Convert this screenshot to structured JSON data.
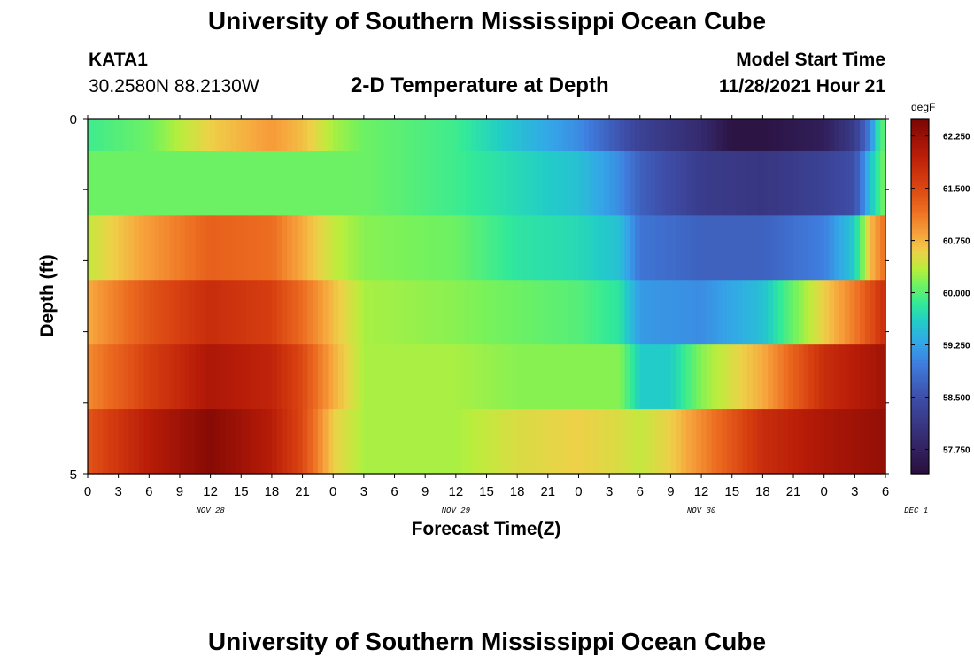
{
  "header": {
    "title": "University of Southern Mississippi Ocean Cube",
    "station_id": "KATA1",
    "station_coords": "30.2580N  88.2130W",
    "subtitle": "2-D Temperature at Depth",
    "model_start_label": "Model Start Time",
    "model_start_value": "11/28/2021 Hour 21"
  },
  "footer": {
    "title": "University of Southern Mississippi Ocean Cube"
  },
  "chart_data": {
    "type": "heatmap",
    "title": "2-D Temperature at Depth",
    "xlabel": "Forecast Time(Z)",
    "ylabel": "Depth (ft)",
    "colorbar_unit": "degF",
    "x_range_hours": [
      0,
      78
    ],
    "y_range": [
      0,
      5
    ],
    "y_tick_labels": [
      "0",
      "5"
    ],
    "x_tick_labels": [
      "0",
      "3",
      "6",
      "9",
      "12",
      "15",
      "18",
      "21",
      "0",
      "3",
      "6",
      "9",
      "12",
      "15",
      "18",
      "21",
      "0",
      "3",
      "6",
      "9",
      "12",
      "15",
      "18",
      "21",
      "0",
      "3",
      "6"
    ],
    "day_labels": [
      {
        "label": "NOV 28",
        "hour": 12
      },
      {
        "label": "NOV 29",
        "hour": 36
      },
      {
        "label": "NOV 30",
        "hour": 60
      },
      {
        "label": "DEC 1",
        "hour": 81
      }
    ],
    "color_scale": {
      "min": 57.4,
      "max": 62.5,
      "ticks": [
        "62.250",
        "61.500",
        "60.750",
        "60.000",
        "59.250",
        "58.500",
        "57.750"
      ],
      "stops": [
        {
          "v": 57.4,
          "c": "#2a0e3a"
        },
        {
          "v": 57.9,
          "c": "#352a6e"
        },
        {
          "v": 58.5,
          "c": "#3e4ea8"
        },
        {
          "v": 59.0,
          "c": "#3f7fe0"
        },
        {
          "v": 59.3,
          "c": "#33a8e8"
        },
        {
          "v": 59.6,
          "c": "#22ccc8"
        },
        {
          "v": 59.85,
          "c": "#33ea98"
        },
        {
          "v": 60.15,
          "c": "#78f25a"
        },
        {
          "v": 60.35,
          "c": "#b9ee3c"
        },
        {
          "v": 60.6,
          "c": "#eed048"
        },
        {
          "v": 60.85,
          "c": "#f7a23c"
        },
        {
          "v": 61.2,
          "c": "#ec6c20"
        },
        {
          "v": 61.6,
          "c": "#d63e10"
        },
        {
          "v": 62.0,
          "c": "#b81c08"
        },
        {
          "v": 62.5,
          "c": "#7a0604"
        }
      ]
    },
    "depth_rows": [
      {
        "label": "row1",
        "keyframes": [
          [
            0,
            59.9
          ],
          [
            6,
            60.1
          ],
          [
            12,
            60.6
          ],
          [
            18,
            60.9
          ],
          [
            21,
            60.7
          ],
          [
            24,
            60.3
          ],
          [
            27,
            60.1
          ],
          [
            36,
            59.9
          ],
          [
            42,
            59.5
          ],
          [
            48,
            59.1
          ],
          [
            54,
            58.3
          ],
          [
            60,
            57.9
          ],
          [
            63,
            57.5
          ],
          [
            66,
            57.5
          ],
          [
            72,
            57.7
          ],
          [
            75,
            58.2
          ],
          [
            76.5,
            59.0
          ],
          [
            77.5,
            60.0
          ],
          [
            78,
            60.0
          ]
        ]
      },
      {
        "label": "row2",
        "keyframes": [
          [
            0,
            60.1
          ],
          [
            24,
            60.1
          ],
          [
            27,
            60.1
          ],
          [
            36,
            59.9
          ],
          [
            42,
            59.7
          ],
          [
            48,
            59.5
          ],
          [
            52,
            59.1
          ],
          [
            54,
            58.7
          ],
          [
            60,
            58.2
          ],
          [
            66,
            58.1
          ],
          [
            72,
            58.3
          ],
          [
            75,
            58.5
          ],
          [
            76.5,
            59.5
          ],
          [
            78,
            60.2
          ]
        ]
      },
      {
        "label": "row3",
        "keyframes": [
          [
            0,
            60.4
          ],
          [
            6,
            60.9
          ],
          [
            12,
            61.3
          ],
          [
            18,
            61.2
          ],
          [
            21,
            60.8
          ],
          [
            24,
            60.4
          ],
          [
            27,
            60.2
          ],
          [
            36,
            60.1
          ],
          [
            42,
            59.8
          ],
          [
            48,
            59.7
          ],
          [
            52,
            59.5
          ],
          [
            54,
            58.9
          ],
          [
            60,
            58.7
          ],
          [
            66,
            58.7
          ],
          [
            72,
            59.0
          ],
          [
            75,
            59.6
          ],
          [
            76.5,
            60.7
          ],
          [
            78,
            61.2
          ]
        ]
      },
      {
        "label": "row4",
        "keyframes": [
          [
            0,
            60.8
          ],
          [
            6,
            61.4
          ],
          [
            12,
            61.8
          ],
          [
            18,
            61.6
          ],
          [
            21,
            61.2
          ],
          [
            24,
            60.7
          ],
          [
            27,
            60.3
          ],
          [
            36,
            60.2
          ],
          [
            42,
            60.1
          ],
          [
            48,
            60.0
          ],
          [
            52,
            59.8
          ],
          [
            54,
            59.2
          ],
          [
            60,
            59.1
          ],
          [
            66,
            59.5
          ],
          [
            69,
            60.1
          ],
          [
            72,
            60.6
          ],
          [
            75,
            61.1
          ],
          [
            78,
            61.8
          ]
        ]
      },
      {
        "label": "row5",
        "keyframes": [
          [
            0,
            61.0
          ],
          [
            6,
            61.6
          ],
          [
            12,
            62.1
          ],
          [
            18,
            61.9
          ],
          [
            21,
            61.5
          ],
          [
            24,
            60.8
          ],
          [
            27,
            60.3
          ],
          [
            36,
            60.3
          ],
          [
            42,
            60.2
          ],
          [
            48,
            60.2
          ],
          [
            52,
            60.2
          ],
          [
            54,
            59.6
          ],
          [
            57,
            59.6
          ],
          [
            60,
            60.2
          ],
          [
            66,
            60.8
          ],
          [
            69,
            61.3
          ],
          [
            72,
            61.8
          ],
          [
            75,
            62.0
          ],
          [
            78,
            62.2
          ]
        ]
      },
      {
        "label": "row6",
        "keyframes": [
          [
            0,
            61.4
          ],
          [
            6,
            62.0
          ],
          [
            12,
            62.4
          ],
          [
            18,
            62.0
          ],
          [
            21,
            61.5
          ],
          [
            24,
            60.6
          ],
          [
            27,
            60.3
          ],
          [
            36,
            60.3
          ],
          [
            42,
            60.5
          ],
          [
            48,
            60.6
          ],
          [
            52,
            60.5
          ],
          [
            54,
            60.4
          ],
          [
            57,
            60.6
          ],
          [
            60,
            61.0
          ],
          [
            66,
            61.8
          ],
          [
            72,
            62.1
          ],
          [
            75,
            62.2
          ],
          [
            78,
            62.3
          ]
        ]
      }
    ]
  }
}
